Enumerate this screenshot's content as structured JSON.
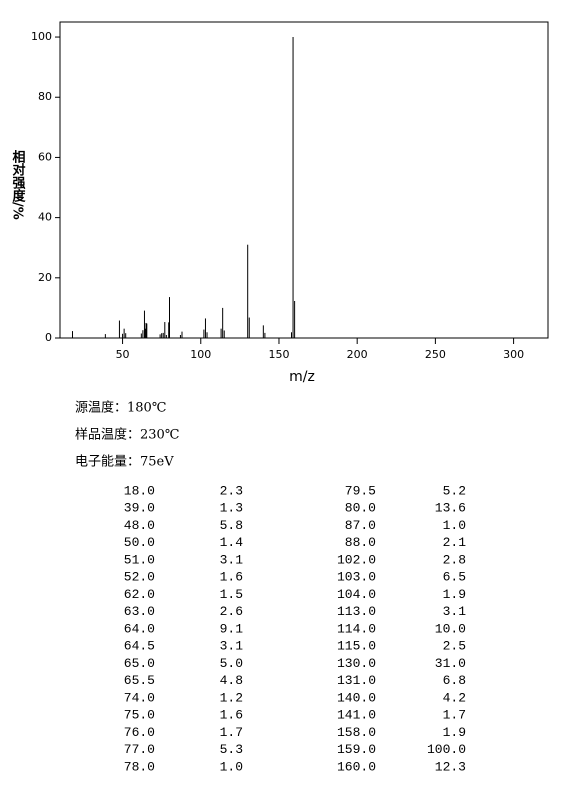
{
  "chart_data": {
    "type": "stem",
    "x_label": "m/z",
    "y_label": "相对强度/%",
    "xlim": [
      10,
      322
    ],
    "ylim": [
      0,
      105
    ],
    "xticks": [
      50,
      100,
      150,
      200,
      250,
      300
    ],
    "yticks": [
      0,
      20,
      40,
      60,
      80,
      100
    ],
    "color": "#000000",
    "annotations": [
      "源温度：180℃",
      "样品温度：230℃",
      "电子能量：75eV"
    ],
    "x": [
      {
        "value": 18,
        "label": "18.0"
      },
      {
        "value": 39,
        "label": "39.0"
      },
      {
        "value": 48,
        "label": "48.0"
      },
      {
        "value": 50,
        "label": "50.0"
      },
      {
        "value": 51,
        "label": "51.0"
      },
      {
        "value": 52,
        "label": "52.0"
      },
      {
        "value": 62,
        "label": "62.0"
      },
      {
        "value": 63,
        "label": "63.0"
      },
      {
        "value": 64,
        "label": "64.0"
      },
      64.5,
      {
        "value": 65,
        "label": "65.0"
      },
      65.5,
      {
        "value": 74,
        "label": "74.0"
      },
      {
        "value": 75,
        "label": "75.0"
      },
      {
        "value": 76,
        "label": "76.0"
      },
      {
        "value": 77,
        "label": "77.0"
      },
      {
        "value": 78,
        "label": "78.0"
      },
      79.5,
      {
        "value": 80,
        "label": "80.0"
      },
      {
        "value": 87,
        "label": "87.0"
      },
      {
        "value": 88,
        "label": "88.0"
      },
      {
        "value": 102,
        "label": "102.0"
      },
      {
        "value": 103,
        "label": "103.0"
      },
      {
        "value": 104,
        "label": "104.0"
      },
      {
        "value": 113,
        "label": "113.0"
      },
      {
        "value": 114,
        "label": "114.0"
      },
      {
        "value": 115,
        "label": "115.0"
      },
      {
        "value": 130,
        "label": "130.0"
      },
      {
        "value": 131,
        "label": "131.0"
      },
      {
        "value": 140,
        "label": "140.0"
      },
      {
        "value": 141,
        "label": "141.0"
      },
      {
        "value": 158,
        "label": "158.0"
      },
      {
        "value": 159,
        "label": "159.0"
      },
      {
        "value": 160,
        "label": "160.0"
      }
    ],
    "values": [
      2.3,
      1.3,
      5.8,
      1.4,
      3.1,
      1.6,
      1.5,
      2.6,
      9.1,
      3.1,
      {
        "value": 5,
        "label": "5.0"
      },
      4.8,
      1.2,
      1.6,
      1.7,
      5.3,
      {
        "value": 1,
        "label": "1.0"
      },
      5.2,
      13.6,
      {
        "value": 1,
        "label": "1.0"
      },
      2.1,
      2.8,
      6.5,
      1.9,
      3.1,
      {
        "value": 10,
        "label": "10.0"
      },
      2.5,
      {
        "value": 31,
        "label": "31.0"
      },
      6.8,
      4.2,
      1.7,
      1.9,
      {
        "value": 100,
        "label": "100.0"
      },
      12.3
    ]
  }
}
